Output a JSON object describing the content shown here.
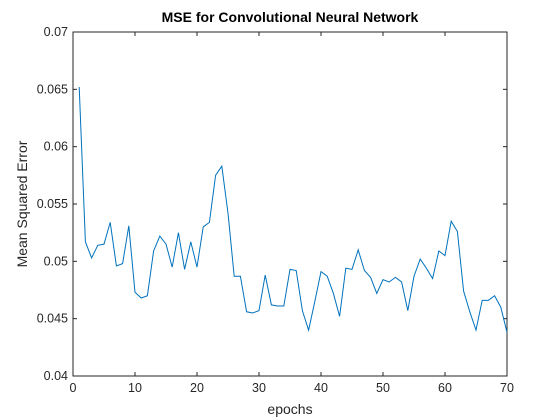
{
  "chart_data": {
    "type": "line",
    "title": "MSE for Convolutional Neural Network",
    "xlabel": "epochs",
    "ylabel": "Mean Squared Error",
    "xlim": [
      0,
      70
    ],
    "ylim": [
      0.04,
      0.07
    ],
    "xticks": [
      0,
      10,
      20,
      30,
      40,
      50,
      60,
      70
    ],
    "xtick_labels": [
      "0",
      "10",
      "20",
      "30",
      "40",
      "50",
      "60",
      "70"
    ],
    "yticks": [
      0.04,
      0.045,
      0.05,
      0.055,
      0.06,
      0.065,
      0.07
    ],
    "ytick_labels": [
      "0.04",
      "0.045",
      "0.05",
      "0.055",
      "0.06",
      "0.065",
      "0.07"
    ],
    "grid": false,
    "legend": "none",
    "line_color": "#0072BD",
    "series": [
      {
        "x": [
          1,
          2,
          3,
          4,
          5,
          6,
          7,
          8,
          9,
          10,
          11,
          12,
          13,
          14,
          15,
          16,
          17,
          18,
          19,
          20,
          21,
          22,
          23,
          24,
          25,
          26,
          27,
          28,
          29,
          30,
          31,
          32,
          33,
          34,
          35,
          36,
          37,
          38,
          39,
          40,
          41,
          42,
          43,
          44,
          45,
          46,
          47,
          48,
          49,
          50,
          51,
          52,
          53,
          54,
          55,
          56,
          57,
          58,
          59,
          60,
          61,
          62,
          63,
          64,
          65,
          66,
          67,
          68,
          69,
          70
        ],
        "values": [
          0.0652,
          0.0517,
          0.0503,
          0.0514,
          0.0515,
          0.0534,
          0.0496,
          0.0498,
          0.0531,
          0.0473,
          0.0468,
          0.047,
          0.0509,
          0.0522,
          0.0515,
          0.0495,
          0.0525,
          0.0493,
          0.0517,
          0.0495,
          0.053,
          0.0534,
          0.0575,
          0.0583,
          0.0542,
          0.0487,
          0.0487,
          0.0456,
          0.0455,
          0.0457,
          0.0488,
          0.0462,
          0.0461,
          0.0461,
          0.0493,
          0.0492,
          0.0457,
          0.044,
          0.0465,
          0.0491,
          0.0487,
          0.0472,
          0.0452,
          0.0494,
          0.0493,
          0.051,
          0.0492,
          0.0486,
          0.0472,
          0.0484,
          0.0482,
          0.0486,
          0.0482,
          0.0457,
          0.0487,
          0.0502,
          0.0494,
          0.0485,
          0.0509,
          0.0505,
          0.0535,
          0.0526,
          0.0474,
          0.0456,
          0.044,
          0.0466,
          0.0466,
          0.047,
          0.046,
          0.0438
        ]
      }
    ]
  }
}
